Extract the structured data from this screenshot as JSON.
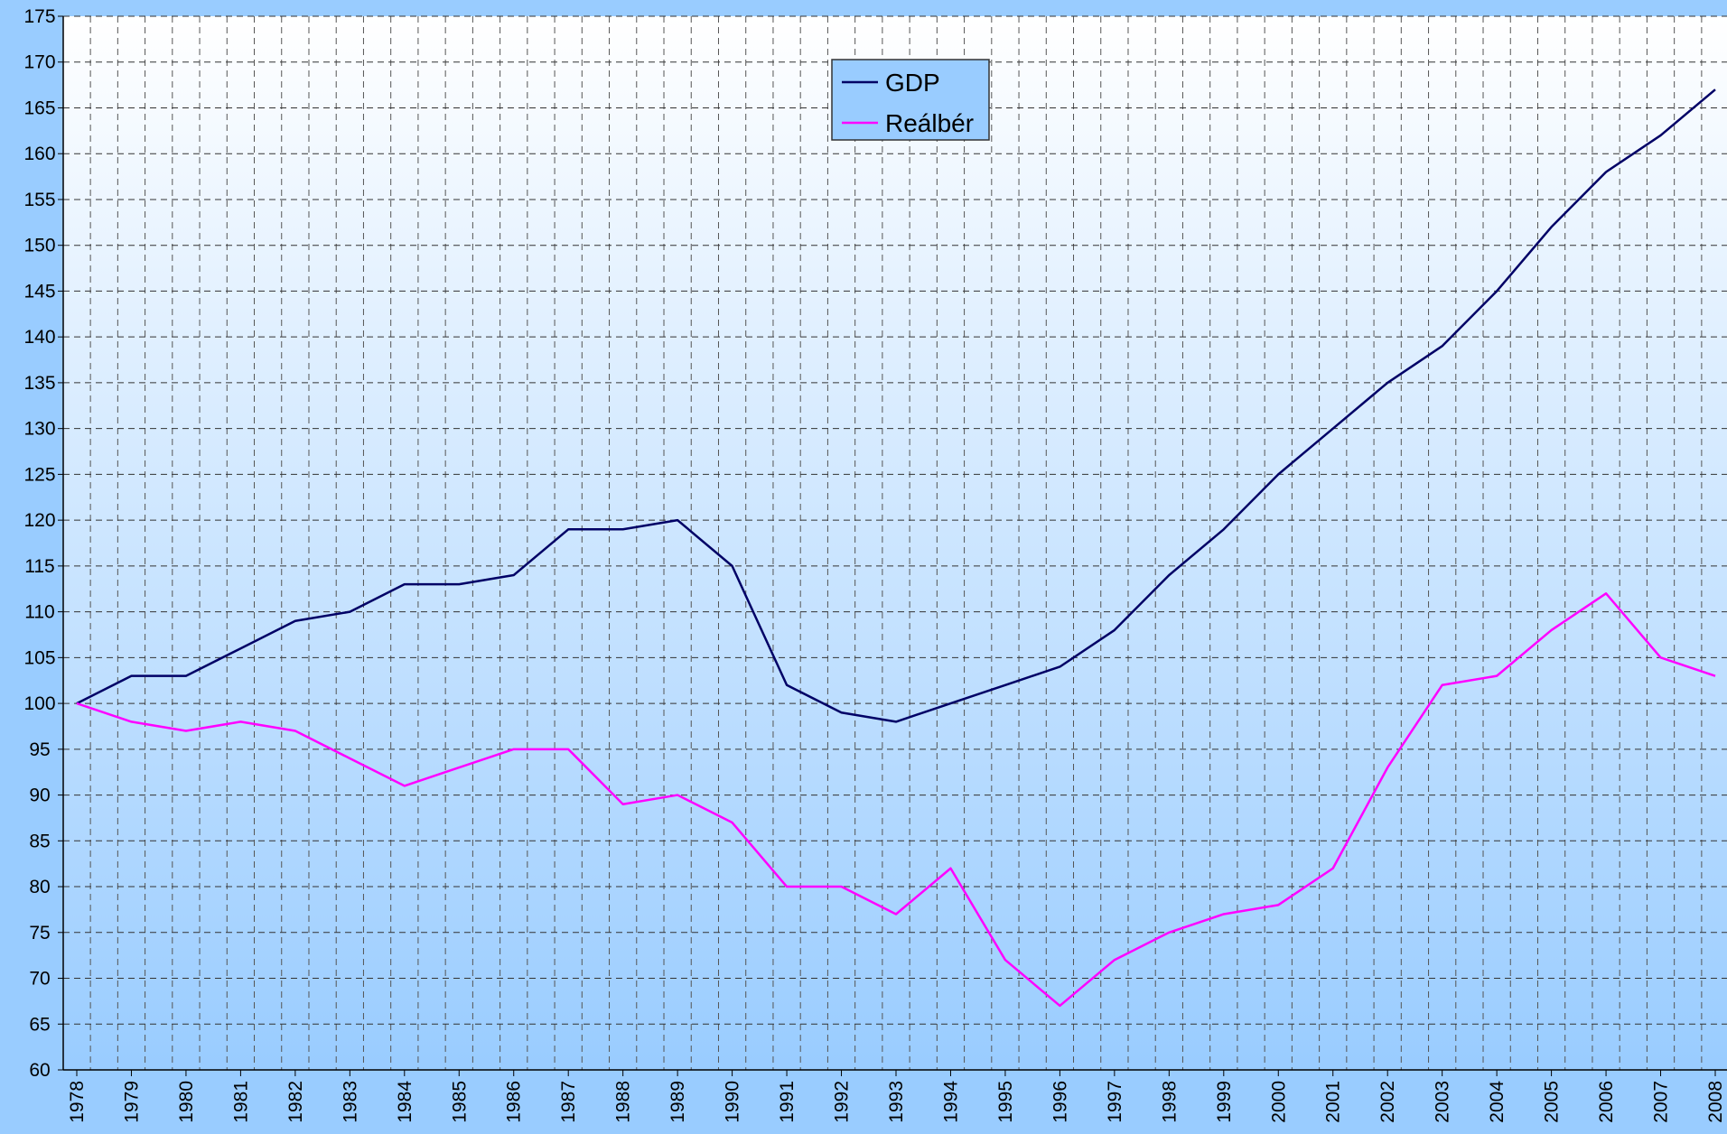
{
  "chart_data": {
    "type": "line",
    "categories": [
      "1978",
      "1979",
      "1980",
      "1981",
      "1982",
      "1983",
      "1984",
      "1985",
      "1986",
      "1987",
      "1988",
      "1989",
      "1990",
      "1991",
      "1992",
      "1993",
      "1994",
      "1995",
      "1996",
      "1997",
      "1998",
      "1999",
      "2000",
      "2001",
      "2002",
      "2003",
      "2004",
      "2005",
      "2006",
      "2007",
      "2008"
    ],
    "series": [
      {
        "name": "GDP",
        "color": "#000066",
        "values": [
          100,
          103,
          103,
          106,
          109,
          110,
          113,
          113,
          114,
          119,
          119,
          120,
          115,
          102,
          99,
          98,
          100,
          102,
          104,
          108,
          114,
          119,
          125,
          130,
          135,
          139,
          145,
          152,
          158,
          162,
          167
        ]
      },
      {
        "name": "Reálbér",
        "color": "#ff00ff",
        "values": [
          100,
          98,
          97,
          98,
          97,
          94,
          91,
          93,
          95,
          95,
          89,
          90,
          87,
          80,
          80,
          77,
          82,
          72,
          67,
          72,
          75,
          77,
          78,
          82,
          93,
          102,
          103,
          108,
          112,
          105,
          103
        ]
      }
    ],
    "ylim": [
      60,
      175
    ],
    "yticks": [
      60,
      65,
      70,
      75,
      80,
      85,
      90,
      95,
      100,
      105,
      110,
      115,
      120,
      125,
      130,
      135,
      140,
      145,
      150,
      155,
      160,
      165,
      170,
      175
    ],
    "grid": true,
    "legend": "top"
  }
}
